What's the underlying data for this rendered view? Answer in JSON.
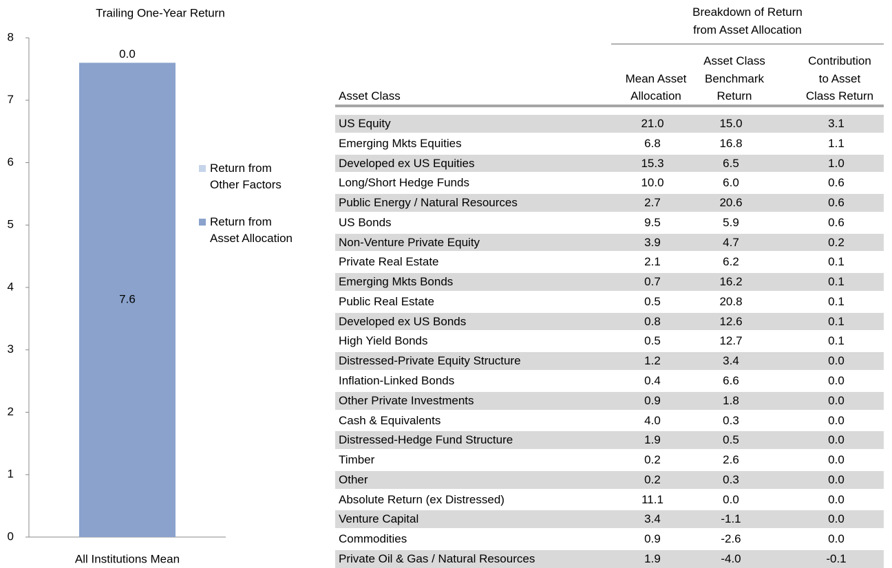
{
  "chart_data": {
    "type": "stacked_bar",
    "title": "Trailing One-Year Return",
    "categories": [
      "All Institutions Mean"
    ],
    "series": [
      {
        "name": "Return from Asset Allocation",
        "color": "#8aa2cc",
        "values": [
          7.6
        ]
      },
      {
        "name": "Return from Other Factors",
        "color": "#c6d4ea",
        "values": [
          0.0
        ],
        "value_labels": [
          "0.0"
        ]
      }
    ],
    "ylim": [
      0,
      8
    ],
    "yticks": [
      0,
      1,
      2,
      3,
      4,
      5,
      6,
      7,
      8
    ],
    "grid": false,
    "legend": "right"
  },
  "table": {
    "group_header": [
      "Breakdown of Return",
      "from Asset Allocation"
    ],
    "columns": [
      [
        "Asset Class"
      ],
      [
        "Mean Asset",
        "Allocation"
      ],
      [
        "Asset Class",
        "Benchmark",
        "Return"
      ],
      [
        "Contribution",
        "to Asset",
        "Class Return"
      ]
    ],
    "rows": [
      [
        "US Equity",
        "21.0",
        "15.0",
        "3.1"
      ],
      [
        "Emerging Mkts Equities",
        "6.8",
        "16.8",
        "1.1"
      ],
      [
        "Developed ex US Equities",
        "15.3",
        "6.5",
        "1.0"
      ],
      [
        "Long/Short Hedge Funds",
        "10.0",
        "6.0",
        "0.6"
      ],
      [
        "Public Energy / Natural Resources",
        "2.7",
        "20.6",
        "0.6"
      ],
      [
        "US Bonds",
        "9.5",
        "5.9",
        "0.6"
      ],
      [
        "Non-Venture Private Equity",
        "3.9",
        "4.7",
        "0.2"
      ],
      [
        "Private Real Estate",
        "2.1",
        "6.2",
        "0.1"
      ],
      [
        "Emerging Mkts Bonds",
        "0.7",
        "16.2",
        "0.1"
      ],
      [
        "Public Real Estate",
        "0.5",
        "20.8",
        "0.1"
      ],
      [
        "Developed ex US Bonds",
        "0.8",
        "12.6",
        "0.1"
      ],
      [
        "High Yield Bonds",
        "0.5",
        "12.7",
        "0.1"
      ],
      [
        "Distressed-Private Equity Structure",
        "1.2",
        "3.4",
        "0.0"
      ],
      [
        "Inflation-Linked Bonds",
        "0.4",
        "6.6",
        "0.0"
      ],
      [
        "Other Private Investments",
        "0.9",
        "1.8",
        "0.0"
      ],
      [
        "Cash & Equivalents",
        "4.0",
        "0.3",
        "0.0"
      ],
      [
        "Distressed-Hedge Fund Structure",
        "1.9",
        "0.5",
        "0.0"
      ],
      [
        "Timber",
        "0.2",
        "2.6",
        "0.0"
      ],
      [
        "Other",
        "0.2",
        "0.3",
        "0.0"
      ],
      [
        "Absolute Return (ex Distressed)",
        "11.1",
        "0.0",
        "0.0"
      ],
      [
        "Venture Capital",
        "3.4",
        "-1.1",
        "0.0"
      ],
      [
        "Commodities",
        "0.9",
        "-2.6",
        "0.0"
      ],
      [
        "Private Oil & Gas / Natural Resources",
        "1.9",
        "-4.0",
        "-0.1"
      ]
    ]
  }
}
